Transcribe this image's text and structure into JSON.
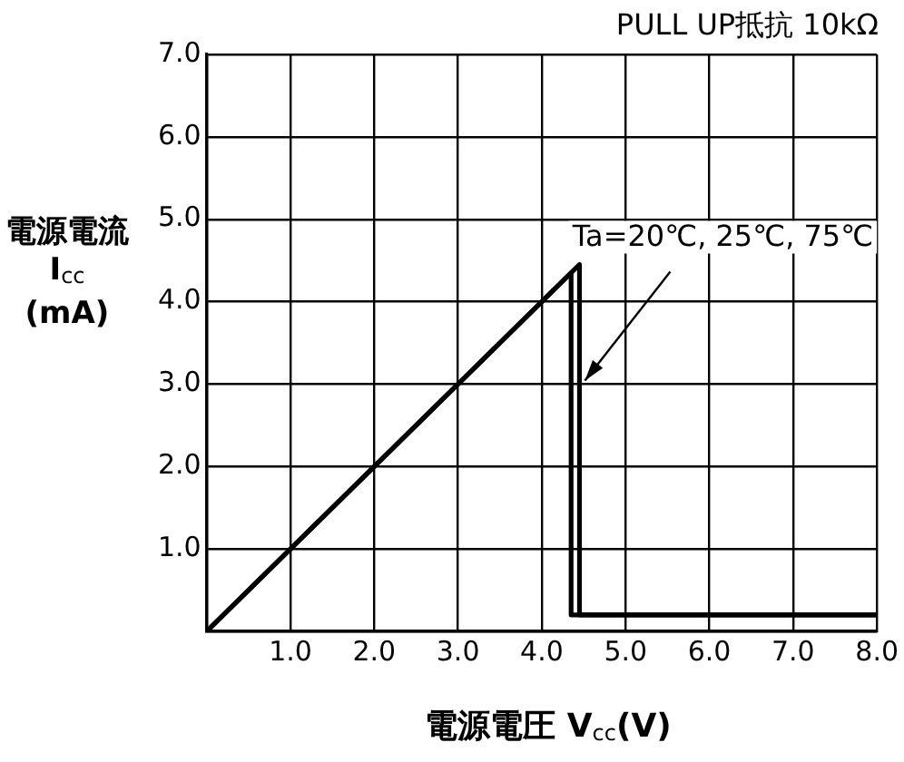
{
  "chart_data": {
    "type": "line",
    "title": "PULL UP抵抗 10kΩ",
    "xlabel": "電源電圧 V$_{cc}$(V)",
    "ylabel": "電源電流\nI$_{cc}$\n(mA)",
    "xlim": [
      0,
      8
    ],
    "ylim": [
      0,
      7
    ],
    "xticks": [
      {
        "value": 0,
        "label": null
      },
      {
        "value": 1,
        "label": "1.0"
      },
      {
        "value": 2,
        "label": "2.0"
      },
      {
        "value": 3,
        "label": "3.0"
      },
      {
        "value": 4,
        "label": "4.0"
      },
      {
        "value": 5,
        "label": "5.0"
      },
      {
        "value": 6,
        "label": "6.0"
      },
      {
        "value": 7,
        "label": "7.0"
      },
      {
        "value": 8,
        "label": "8.0"
      }
    ],
    "yticks": [
      {
        "value": 0,
        "label": null
      },
      {
        "value": 1,
        "label": "1.0"
      },
      {
        "value": 2,
        "label": "2.0"
      },
      {
        "value": 3,
        "label": "3.0"
      },
      {
        "value": 4,
        "label": "4.0"
      },
      {
        "value": 5,
        "label": "5.0"
      },
      {
        "value": 6,
        "label": "6.0"
      },
      {
        "value": 7,
        "label": "7.0"
      }
    ],
    "series": [
      {
        "color": "#000000",
        "x": [
          0,
          4.35,
          4.35,
          8
        ],
        "values": [
          0,
          4.35,
          0.2,
          0.2
        ]
      },
      {
        "color": "#000000",
        "x": [
          0,
          4.45,
          4.45,
          8
        ],
        "values": [
          0,
          4.45,
          0.2,
          0.2
        ]
      }
    ],
    "annotations": [
      {
        "text": "Ta=20℃, 25℃, 75℃",
        "x": 4.45,
        "y": 3.0
      }
    ],
    "grid": true,
    "marker": "none",
    "line_style": "solid",
    "legend": false
  }
}
